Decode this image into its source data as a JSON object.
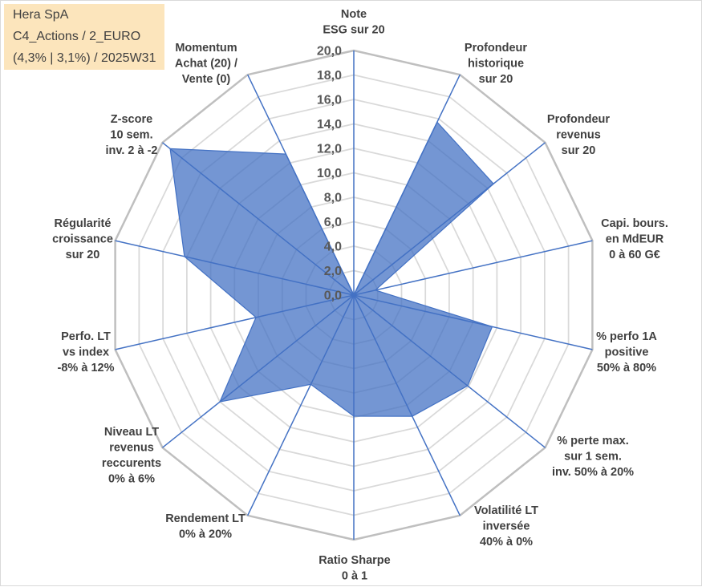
{
  "chart_data": {
    "type": "radar",
    "title": "Hera SpA",
    "subtitle": [
      "C4_Actions / 2_EURO",
      "(4,3% | 3,1%) / 2025W31"
    ],
    "categories": [
      [
        "Note",
        "ESG sur 20"
      ],
      [
        "Profondeur",
        "historique",
        "sur 20"
      ],
      [
        "Profondeur",
        "revenus",
        "sur 20"
      ],
      [
        "Capi. bours.",
        "en MdEUR",
        "0 à 60 G€"
      ],
      [
        "% perfo 1A",
        "positive",
        "50% à 80%"
      ],
      [
        "% perte max.",
        "sur 1 sem.",
        "inv. 50% à 20%"
      ],
      [
        "Volatilité LT",
        "inversée",
        "40% à 0%"
      ],
      [
        "Ratio Sharpe",
        "0 à 1"
      ],
      [
        "Rendement LT",
        "0% à 20%"
      ],
      [
        "Niveau LT",
        "revenus",
        "reccurents",
        "0% à 6%"
      ],
      [
        "Perfo. LT",
        "vs index",
        "-8% à 12%"
      ],
      [
        "Régularité",
        "croissance",
        "sur 20"
      ],
      [
        "Z-score",
        "10 sem.",
        "inv. 2 à -2"
      ],
      [
        "Momentum",
        "Achat (20) /",
        "Vente (0)"
      ]
    ],
    "values": [
      0.0,
      15.7,
      14.6,
      1.8,
      11.6,
      11.9,
      11.0,
      9.9,
      8.1,
      14.0,
      8.2,
      14.2,
      19.2,
      12.8
    ],
    "r_range": [
      0,
      20
    ],
    "r_ticks": [
      "0,0",
      "2,0",
      "4,0",
      "6,0",
      "8,0",
      "10,0",
      "12,0",
      "14,0",
      "16,0",
      "18,0",
      "20,0"
    ],
    "grid": true,
    "legend": false,
    "filled": true
  },
  "colors": {
    "series_fill": "#4472C4",
    "series_line": "#4472C4",
    "spokes": "#4472C4",
    "gridlines": "#D9D9D9",
    "outer_ring": "#BFBFBF",
    "title_box_bg": "#FCE5BC",
    "tick_text": "#595959",
    "label_text": "#404040"
  }
}
